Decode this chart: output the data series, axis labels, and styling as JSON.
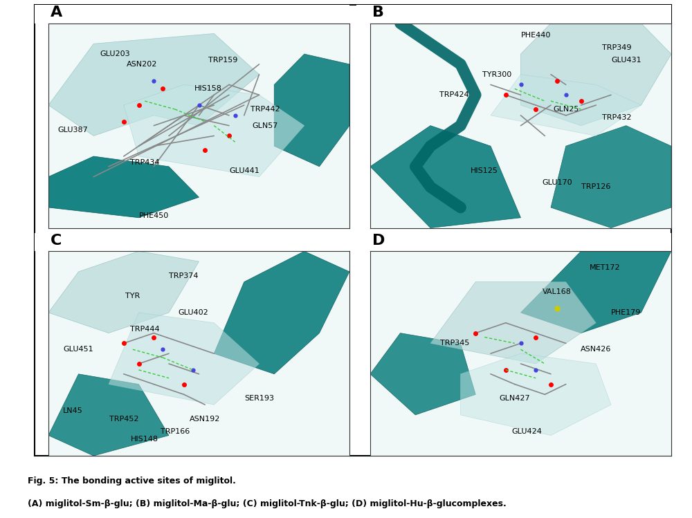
{
  "fig_width": 10.0,
  "fig_height": 7.49,
  "background_color": "#ffffff",
  "border_color": "#000000",
  "panel_labels": [
    "A",
    "B",
    "C",
    "D"
  ],
  "panel_label_fontsize": 16,
  "panel_label_fontweight": "bold",
  "caption_line1": "Fig. 5: The bonding active sites of miglitol.",
  "caption_line2": "(A) miglitol-Sm-β-glu; (B) miglitol-Ma-β-glu; (C) miglitol-Tnk-β-glu; (D) miglitol-Hu-β-glucomplexes.",
  "caption_fontsize": 9,
  "caption_bold_parts": [
    "Fig. 5:",
    "The bonding active sites of miglitol.",
    "(A)",
    "miglitol-Sm-β-glu;",
    "(B)",
    "miglitol-Ma-β-glu;",
    "(C)",
    "miglitol-Tnk-β-glu;",
    "(D)",
    "miglitol-Hu-β-glucomplexes."
  ],
  "panel_A_labels": [
    "GLU203",
    "ASN202",
    "TRP159",
    "HIS158",
    "TRP442",
    "GLN57",
    "GLU387",
    "TRP434",
    "GLU441",
    "PHE450"
  ],
  "panel_B_labels": [
    "PHE440",
    "TRP349",
    "GLU431",
    "TYR300",
    "TRP424",
    "GLN25",
    "TRP432",
    "HIS125",
    "GLU170",
    "TRP126"
  ],
  "panel_C_labels": [
    "TRP374",
    "TYR",
    "GLU402",
    "TRP444",
    "GLU451",
    "SER193",
    "ASN192",
    "TRP166",
    "HIS148",
    "TRP452",
    "LN45"
  ],
  "panel_D_labels": [
    "MET172",
    "VAL168",
    "PHE179",
    "TRP345",
    "ASN426",
    "GLN427",
    "GLU424"
  ],
  "teal_color": "#009999",
  "mol_bg_color": "#e8f4f4",
  "outer_border_lw": 1.5
}
